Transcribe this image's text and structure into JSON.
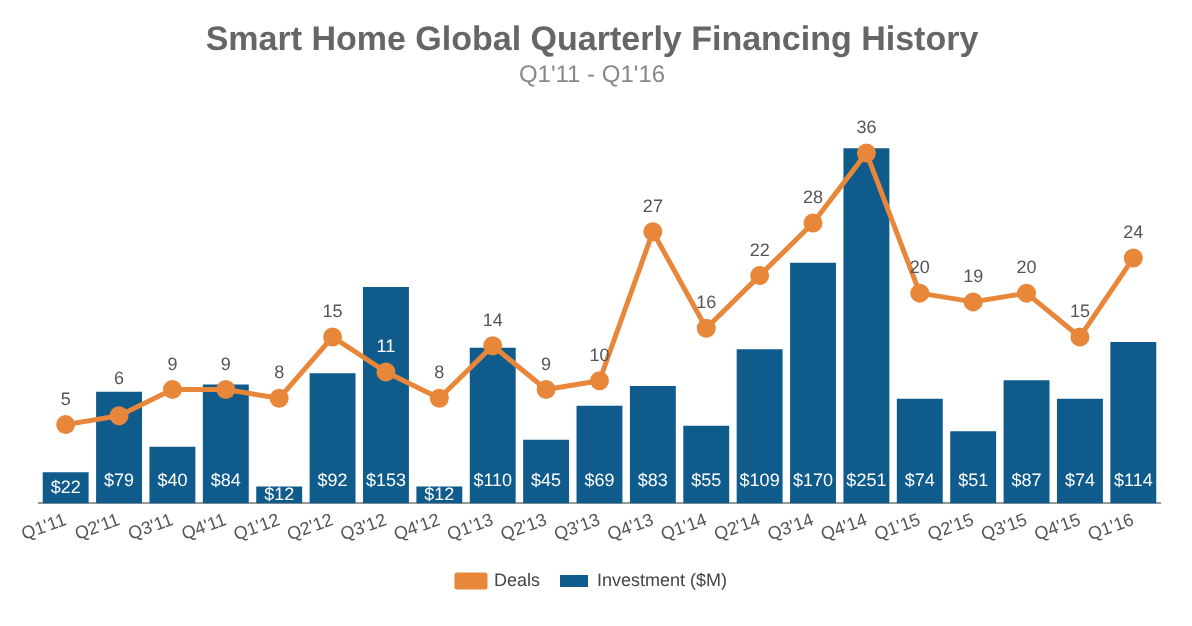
{
  "chart_data": {
    "type": "bar",
    "title": "Smart Home Global Quarterly Financing History",
    "subtitle": "Q1'11 - Q1'16",
    "categories": [
      "Q1'11",
      "Q2'11",
      "Q3'11",
      "Q4'11",
      "Q1'12",
      "Q2'12",
      "Q3'12",
      "Q4'12",
      "Q1'13",
      "Q2'13",
      "Q3'13",
      "Q4'13",
      "Q1'14",
      "Q2'14",
      "Q3'14",
      "Q4'14",
      "Q1'15",
      "Q2'15",
      "Q3'15",
      "Q4'15",
      "Q1'16"
    ],
    "series": [
      {
        "name": "Investment ($M)",
        "color": "#0f5b8c",
        "values": [
          22,
          79,
          40,
          84,
          12,
          92,
          153,
          12,
          110,
          45,
          69,
          83,
          55,
          109,
          170,
          251,
          74,
          51,
          87,
          74,
          114
        ],
        "value_labels": [
          "$22",
          "$79",
          "$40",
          "$84",
          "$12",
          "$92",
          "$153",
          "$12",
          "$110",
          "$45",
          "$69",
          "$83",
          "$55",
          "$109",
          "$170",
          "$251",
          "$74",
          "$51",
          "$87",
          "$74",
          "$114"
        ]
      },
      {
        "name": "Deals",
        "type": "line",
        "axis": "y2",
        "color": "#e8873a",
        "marker": "circle",
        "values": [
          5,
          6,
          9,
          9,
          8,
          15,
          11,
          8,
          14,
          9,
          10,
          27,
          16,
          22,
          28,
          36,
          20,
          19,
          20,
          15,
          24
        ]
      }
    ],
    "data_labels": true,
    "legend": "bottom",
    "grid": false
  }
}
